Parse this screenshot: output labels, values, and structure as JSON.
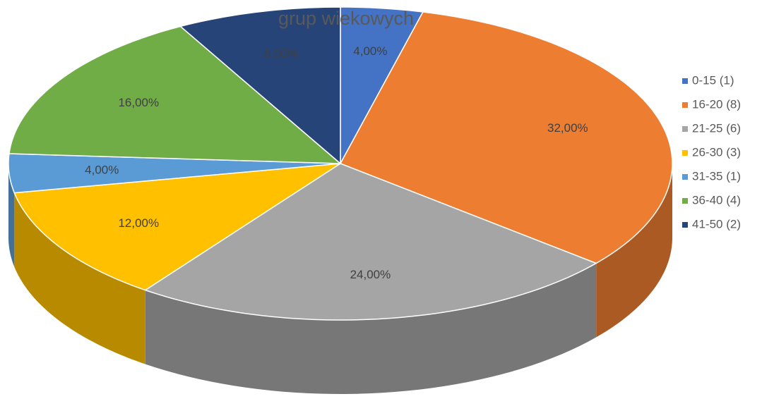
{
  "chart_data": {
    "type": "pie",
    "title": "grup wiekowych",
    "categories": [
      "0-15 (1)",
      "16-20 (8)",
      "21-25 (6)",
      "26-30 (3)",
      "31-35 (1)",
      "36-40 (4)",
      "41-50 (2)"
    ],
    "values": [
      4,
      32,
      24,
      12,
      4,
      16,
      8
    ],
    "value_labels": [
      "4,00%",
      "32,00%",
      "24,00%",
      "12,00%",
      "4,00%",
      "16,00%",
      "8,00%"
    ],
    "colors": [
      "#4472c4",
      "#ed7d31",
      "#a5a5a5",
      "#ffc000",
      "#5b9bd5",
      "#70ad47",
      "#264478"
    ],
    "legend": "right"
  }
}
